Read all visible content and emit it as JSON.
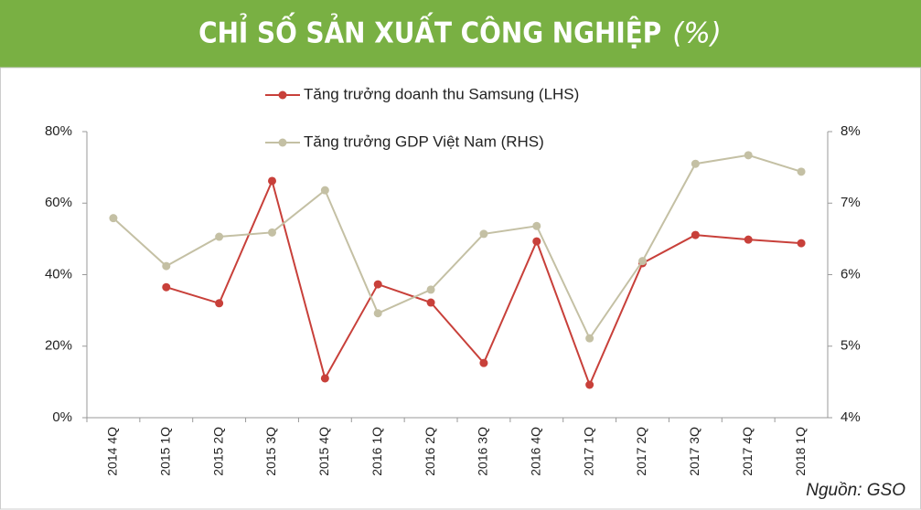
{
  "chart_data": {
    "type": "line",
    "title": "CHỈ SỐ SẢN XUẤT CÔNG NGHIỆP",
    "subtitle": "(%)",
    "source": "Nguồn: GSO",
    "categories": [
      "2014 4Q",
      "2015 1Q",
      "2015 2Q",
      "2015 3Q",
      "2015 4Q",
      "2016 1Q",
      "2016 2Q",
      "2016 3Q",
      "2016 4Q",
      "2017 1Q",
      "2017 2Q",
      "2017 3Q",
      "2017 4Q",
      "2018 1Q"
    ],
    "series": [
      {
        "name": "Tăng trưởng doanh thu Samsung (LHS)",
        "color": "#c8403a",
        "values": [
          null,
          36.5,
          32,
          66.2,
          11,
          37.3,
          32.2,
          15.3,
          49.3,
          9.2,
          43.2,
          51.1,
          49.8,
          48.8
        ]
      },
      {
        "name": "Tăng trưởng GDP Việt Nam (RHS)",
        "color": "#c4c0a4",
        "axis": "y2",
        "values": [
          6.79,
          6.12,
          6.53,
          6.59,
          7.18,
          5.46,
          5.79,
          6.57,
          6.68,
          5.11,
          6.19,
          7.55,
          7.67,
          7.44
        ]
      }
    ],
    "ylim": [
      0,
      80
    ],
    "yticks": [
      {
        "value": 0,
        "label": "0%"
      },
      {
        "value": 20,
        "label": "20%"
      },
      {
        "value": 40,
        "label": "40%"
      },
      {
        "value": 60,
        "label": "60%"
      },
      {
        "value": 80,
        "label": "80%"
      }
    ],
    "y2lim": [
      4,
      8
    ],
    "y2ticks": [
      {
        "value": 4,
        "label": "4%"
      },
      {
        "value": 5,
        "label": "5%"
      },
      {
        "value": 6,
        "label": "6%"
      },
      {
        "value": 7,
        "label": "7%"
      },
      {
        "value": 8,
        "label": "8%"
      }
    ],
    "grid": false,
    "legend": "top"
  }
}
